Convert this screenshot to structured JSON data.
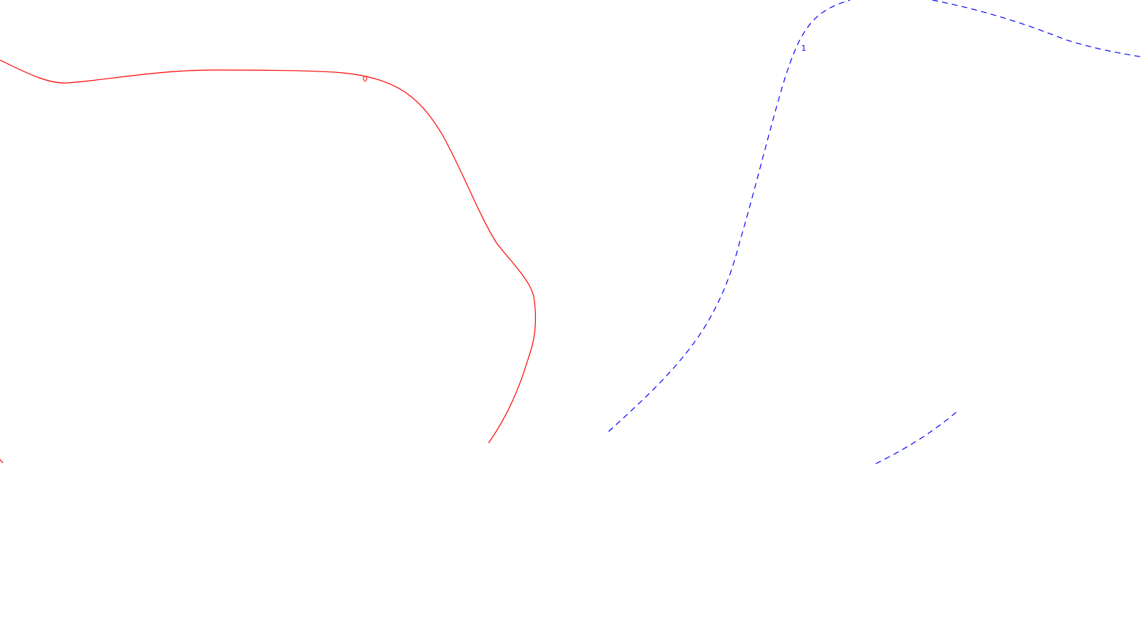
{
  "contours": [
    {
      "id": "contour-0",
      "level_label": "0",
      "color": "#ff0000",
      "line_style": "solid"
    },
    {
      "id": "contour-1",
      "level_label": "1",
      "color": "#0000ff",
      "line_style": "dashed"
    }
  ]
}
